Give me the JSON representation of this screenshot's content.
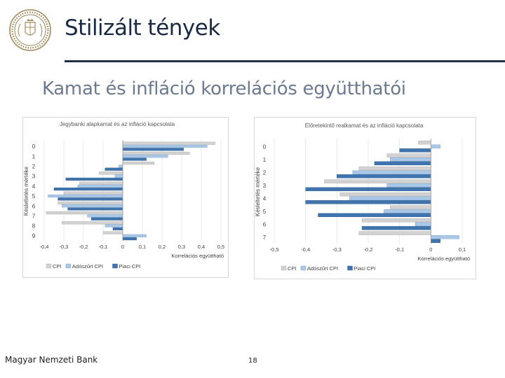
{
  "header": {
    "title": "Stilizált tények",
    "subtitle": "Kamat és infláció korrelációs együtthatói"
  },
  "footer": {
    "bank": "Magyar Nemzeti Bank",
    "page": "18"
  },
  "colors": {
    "cpi": "#d2d2d2",
    "adoszurt": "#a9c7e6",
    "piaci": "#3f74ae",
    "title_text": "#1b2a44",
    "subtitle_text": "#6b7a90"
  },
  "chart_data": [
    {
      "type": "bar",
      "orientation": "horizontal",
      "title": "Jegybanki alapkamat és az infláció kapcsolata",
      "xlabel": "Korrelációs együttható",
      "ylabel": "Késleltetés mértéke",
      "xlim": [
        -0.4,
        0.5
      ],
      "xticks": [
        "-0,4",
        "-0,3",
        "-0,2",
        "-0,1",
        "0",
        "0,1",
        "0,2",
        "0,3",
        "0,4",
        "0,5"
      ],
      "xtick_values": [
        -0.4,
        -0.3,
        -0.2,
        -0.1,
        0,
        0.1,
        0.2,
        0.3,
        0.4,
        0.5
      ],
      "categories": [
        "0",
        "1",
        "2",
        "3",
        "4",
        "5",
        "6",
        "7",
        "8",
        "9"
      ],
      "grid": true,
      "legend": "bottom",
      "series": [
        {
          "name": "CPI",
          "values": [
            0.47,
            0.34,
            0.16,
            -0.12,
            -0.22,
            -0.3,
            -0.33,
            -0.39,
            -0.31,
            -0.1
          ]
        },
        {
          "name": "Adószűrt CPI",
          "values": [
            0.43,
            0.23,
            -0.02,
            -0.04,
            -0.23,
            -0.38,
            -0.31,
            -0.18,
            -0.09,
            0.12
          ]
        },
        {
          "name": "Piaci CPI",
          "values": [
            0.31,
            0.12,
            -0.09,
            -0.29,
            -0.35,
            -0.33,
            -0.28,
            -0.16,
            -0.05,
            0.07
          ]
        }
      ]
    },
    {
      "type": "bar",
      "orientation": "horizontal",
      "title": "Előretekintő realkamat és az infláció kapcsolata",
      "xlabel": "Korrelációs együttható",
      "ylabel": "Késleltetés mértéke",
      "xlim": [
        -0.5,
        0.1
      ],
      "xticks": [
        "-0,5",
        "-0,4",
        "-0,3",
        "-0,2",
        "-0,1",
        "0",
        "0,1"
      ],
      "xtick_values": [
        -0.5,
        -0.4,
        -0.3,
        -0.2,
        -0.1,
        0,
        0.1
      ],
      "categories": [
        "0",
        "1",
        "2",
        "3",
        "4",
        "5",
        "6",
        "7"
      ],
      "grid": true,
      "legend": "bottom",
      "series": [
        {
          "name": "CPI",
          "values": [
            -0.04,
            -0.14,
            -0.23,
            -0.34,
            -0.29,
            -0.13,
            -0.22,
            -0.23
          ]
        },
        {
          "name": "Adószűrt CPI",
          "values": [
            0.03,
            -0.13,
            -0.25,
            -0.14,
            -0.26,
            -0.15,
            -0.05,
            0.09
          ]
        },
        {
          "name": "Piaci CPI",
          "values": [
            -0.1,
            -0.18,
            -0.3,
            -0.4,
            -0.4,
            -0.36,
            -0.22,
            0.03
          ]
        }
      ]
    }
  ]
}
